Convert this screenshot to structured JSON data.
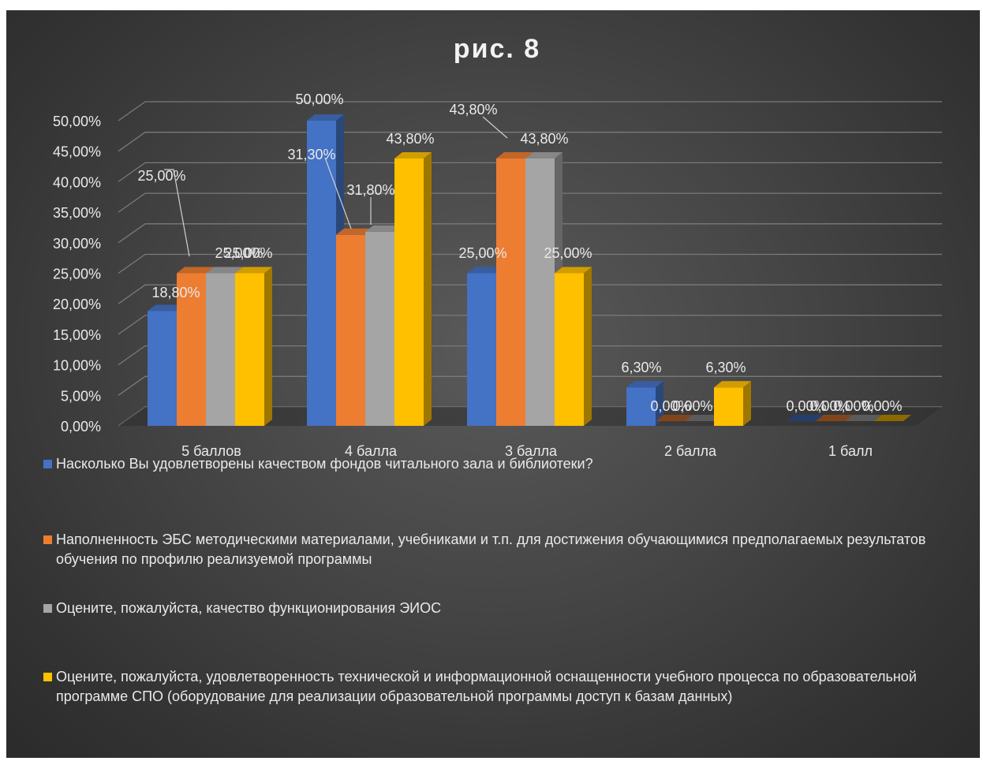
{
  "chart_data": {
    "type": "bar",
    "title": "рис. 8",
    "categories": [
      "5 баллов",
      "4 балла",
      "3 балла",
      "2 балла",
      "1 балл"
    ],
    "ylim": [
      0,
      50
    ],
    "yticks": [
      "0,00%",
      "5,00%",
      "10,00%",
      "15,00%",
      "20,00%",
      "25,00%",
      "30,00%",
      "35,00%",
      "40,00%",
      "45,00%",
      "50,00%"
    ],
    "grid": true,
    "legend_position": "bottom",
    "series": [
      {
        "name": "Насколько Вы удовлетворены качеством фондов читального зала и библиотеки?",
        "color": "#4472c4",
        "values": [
          18.8,
          50.0,
          25.0,
          6.3,
          0.0
        ],
        "labels": [
          "18,80%",
          "50,00%",
          "25,00%",
          "6,30%",
          "0,00%"
        ]
      },
      {
        "name": "Наполненность ЭБС методическими материалами, учебниками и т.п. для достижения обучающимися предполагаемых результатов обучения по профилю реализуемой программы",
        "color": "#ed7d31",
        "values": [
          25.0,
          31.3,
          43.8,
          0.0,
          0.0
        ],
        "labels": [
          "25,00%",
          "31,30%",
          "43,80%",
          "0,00%",
          "0,00%"
        ]
      },
      {
        "name": "Оцените, пожалуйста, качество функционирования ЭИОС",
        "color": "#a5a5a5",
        "values": [
          25.0,
          31.8,
          43.8,
          0.0,
          0.0
        ],
        "labels": [
          "25,00%",
          "31,80%",
          "43,80%",
          "0,00%",
          "0,00%"
        ]
      },
      {
        "name": "Оцените, пожалуйста, удовлетворенность технической и информационной оснащенности учебного процесса по образовательной программе СПО (оборудование для реализации образовательной программы доступ к базам данных)",
        "color": "#ffc000",
        "values": [
          25.0,
          43.8,
          25.0,
          6.3,
          0.0
        ],
        "labels": [
          "25,00%",
          "43,80%",
          "25,00%",
          "6,30%",
          "0,00%"
        ]
      }
    ]
  }
}
